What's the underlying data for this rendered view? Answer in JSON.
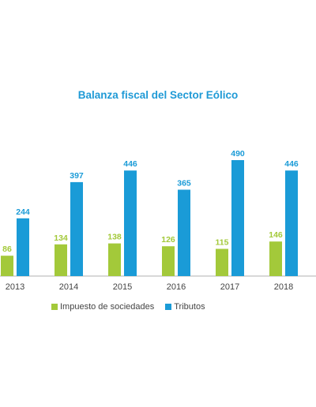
{
  "chart_data": {
    "type": "bar",
    "title": "Balanza fiscal del Sector Eólico",
    "categories": [
      "2013",
      "2014",
      "2015",
      "2016",
      "2017",
      "2018"
    ],
    "series": [
      {
        "name": "Impuesto de sociedades",
        "values": [
          86,
          134,
          138,
          126,
          115,
          146
        ],
        "color": "#a3c93a"
      },
      {
        "name": "Tributos",
        "values": [
          244,
          397,
          446,
          365,
          490,
          446
        ],
        "color": "#1a9bd7"
      }
    ],
    "ylim": [
      0,
      500
    ],
    "grid": false,
    "legend_position": "bottom"
  }
}
